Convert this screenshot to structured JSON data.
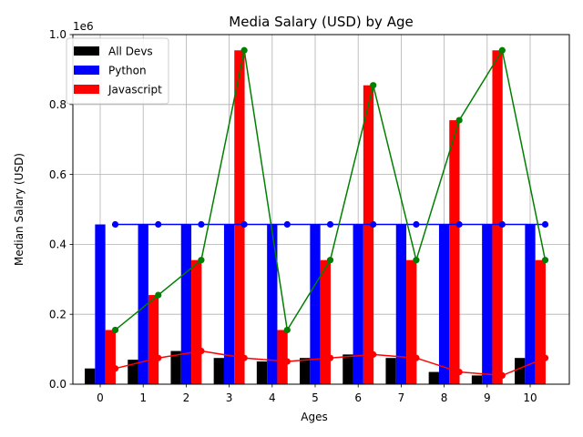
{
  "chart_data": {
    "type": "bar",
    "title": "Media Salary (USD) by Age",
    "xlabel": "Ages",
    "ylabel": "Median Salary (USD)",
    "y_offset_text": "1e6",
    "x": [
      0,
      1,
      2,
      3,
      4,
      5,
      6,
      7,
      8,
      9,
      10
    ],
    "x_tick_labels": [
      "0",
      "1",
      "2",
      "3",
      "4",
      "5",
      "6",
      "7",
      "8",
      "9",
      "10"
    ],
    "y_ticks": [
      0.0,
      0.2,
      0.4,
      0.6,
      0.8,
      1.0
    ],
    "y_tick_labels": [
      "0.0",
      "0.2",
      "0.4",
      "0.6",
      "0.8",
      "1.0"
    ],
    "ylim": [
      0,
      1000000
    ],
    "grid": true,
    "legend_position": "top-left",
    "series": [
      {
        "name": "All Devs",
        "color": "#000000",
        "values": [
          45000,
          70000,
          95000,
          75000,
          65000,
          75000,
          85000,
          75000,
          35000,
          25000,
          75000
        ]
      },
      {
        "name": "Python",
        "color": "#0000ff",
        "values": [
          457000,
          457000,
          457000,
          457000,
          457000,
          457000,
          457000,
          457000,
          457000,
          457000,
          457000
        ]
      },
      {
        "name": "Javascript",
        "color": "#ff0000",
        "values": [
          155000,
          255000,
          355000,
          955000,
          155000,
          355000,
          855000,
          355000,
          755000,
          955000,
          355000
        ]
      }
    ],
    "line_series": [
      {
        "color": "#ff0000",
        "x": [
          0,
          1,
          2,
          3,
          4,
          5,
          6,
          7,
          8,
          9,
          10
        ],
        "values": [
          45000,
          75000,
          95000,
          75000,
          65000,
          75000,
          85000,
          75000,
          35000,
          25000,
          75000
        ]
      },
      {
        "color": "#0000ff",
        "x": [
          0,
          1,
          2,
          3,
          4,
          5,
          6,
          7,
          8,
          9,
          10
        ],
        "values": [
          457000,
          457000,
          457000,
          457000,
          457000,
          457000,
          457000,
          457000,
          457000,
          457000,
          457000
        ]
      },
      {
        "color": "#008000",
        "x": [
          0,
          1,
          2,
          3,
          4,
          5,
          6,
          7,
          8,
          9,
          10
        ],
        "values": [
          155000,
          255000,
          355000,
          955000,
          155000,
          355000,
          855000,
          355000,
          755000,
          955000,
          355000
        ]
      }
    ]
  }
}
